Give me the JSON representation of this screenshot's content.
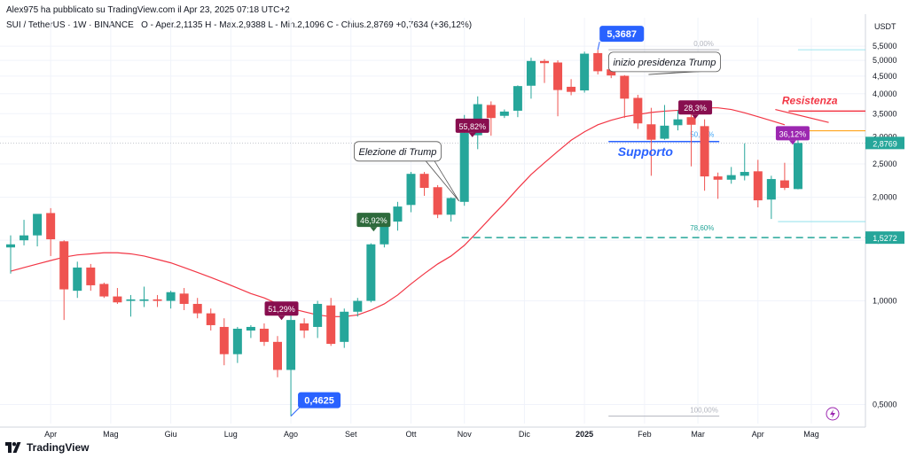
{
  "attribution": "Alex975 ha pubblicato su TradingView.com il Apr 23, 2025 07:18 UTC+2",
  "header": {
    "symbol": "SUI / TetherUS · 1W · BINANCE",
    "ohlc": "O - Aper.2,1135  H - Max.2,9388  L - Min.2,1096  C - Chius.2,8769  +0,7634 (+36,12%)"
  },
  "brand": "TradingView",
  "colors": {
    "up": "#26a69a",
    "down": "#ef5350",
    "ma": "#f23645",
    "accent": "#2962ff",
    "resistance_line": "#f23645",
    "support_line": "#2962ff"
  },
  "chart_data": {
    "type": "candlestick",
    "currency_label": "USDT",
    "y_scale": "log",
    "ylim": [
      0.44,
      6.05
    ],
    "y_ticks": [
      "5,5000",
      "5,0000",
      "4,5000",
      "4,0000",
      "3,5000",
      "3,0000",
      "2,5000",
      "2,0000",
      "1,5000",
      "1,0000",
      "0,5000"
    ],
    "y_tick_values": [
      5.5,
      5.0,
      4.5,
      4.0,
      3.5,
      3.0,
      2.5,
      2.0,
      1.5,
      1.0,
      0.5
    ],
    "x_ticks": [
      "Apr",
      "Mag",
      "Giu",
      "Lug",
      "Ago",
      "Set",
      "Ott",
      "Nov",
      "Dic",
      "2025",
      "Feb",
      "Mar",
      "Apr",
      "Mag"
    ],
    "x_tick_index": [
      3,
      7.5,
      12,
      16.5,
      21,
      25.5,
      30,
      34,
      38.5,
      43,
      47.5,
      51.5,
      56,
      60
    ],
    "candles": [
      {
        "o": 1.43,
        "h": 1.55,
        "l": 1.2,
        "c": 1.46
      },
      {
        "o": 1.5,
        "h": 1.72,
        "l": 1.45,
        "c": 1.55
      },
      {
        "o": 1.55,
        "h": 1.78,
        "l": 1.44,
        "c": 1.79
      },
      {
        "o": 1.8,
        "h": 1.86,
        "l": 1.35,
        "c": 1.51
      },
      {
        "o": 1.49,
        "h": 1.5,
        "l": 0.88,
        "c": 1.08
      },
      {
        "o": 1.07,
        "h": 1.3,
        "l": 1.02,
        "c": 1.25
      },
      {
        "o": 1.25,
        "h": 1.28,
        "l": 1.07,
        "c": 1.11
      },
      {
        "o": 1.12,
        "h": 1.13,
        "l": 1.02,
        "c": 1.03
      },
      {
        "o": 1.03,
        "h": 1.09,
        "l": 0.98,
        "c": 0.99
      },
      {
        "o": 1.0,
        "h": 1.04,
        "l": 0.9,
        "c": 1.01
      },
      {
        "o": 1.0,
        "h": 1.1,
        "l": 0.96,
        "c": 1.01
      },
      {
        "o": 1.01,
        "h": 1.04,
        "l": 0.96,
        "c": 1.0
      },
      {
        "o": 1.0,
        "h": 1.07,
        "l": 0.95,
        "c": 1.06
      },
      {
        "o": 1.05,
        "h": 1.09,
        "l": 0.94,
        "c": 0.98
      },
      {
        "o": 0.98,
        "h": 1.02,
        "l": 0.89,
        "c": 0.92
      },
      {
        "o": 0.92,
        "h": 0.95,
        "l": 0.82,
        "c": 0.85
      },
      {
        "o": 0.84,
        "h": 0.89,
        "l": 0.65,
        "c": 0.7
      },
      {
        "o": 0.7,
        "h": 0.84,
        "l": 0.66,
        "c": 0.83
      },
      {
        "o": 0.82,
        "h": 0.85,
        "l": 0.78,
        "c": 0.84
      },
      {
        "o": 0.83,
        "h": 0.86,
        "l": 0.74,
        "c": 0.76
      },
      {
        "o": 0.76,
        "h": 0.79,
        "l": 0.6,
        "c": 0.63
      },
      {
        "o": 0.63,
        "h": 0.94,
        "l": 0.4625,
        "c": 0.88
      },
      {
        "o": 0.86,
        "h": 0.89,
        "l": 0.78,
        "c": 0.82
      },
      {
        "o": 0.84,
        "h": 1.0,
        "l": 0.78,
        "c": 0.98
      },
      {
        "o": 0.97,
        "h": 1.02,
        "l": 0.74,
        "c": 0.75
      },
      {
        "o": 0.76,
        "h": 0.95,
        "l": 0.73,
        "c": 0.93
      },
      {
        "o": 0.93,
        "h": 1.02,
        "l": 0.9,
        "c": 1.0
      },
      {
        "o": 1.0,
        "h": 1.47,
        "l": 0.99,
        "c": 1.46
      },
      {
        "o": 1.46,
        "h": 1.79,
        "l": 1.43,
        "c": 1.67
      },
      {
        "o": 1.7,
        "h": 1.94,
        "l": 1.6,
        "c": 1.88
      },
      {
        "o": 1.9,
        "h": 2.37,
        "l": 1.81,
        "c": 2.34
      },
      {
        "o": 2.34,
        "h": 2.37,
        "l": 2.02,
        "c": 2.13
      },
      {
        "o": 2.14,
        "h": 2.17,
        "l": 1.74,
        "c": 1.78
      },
      {
        "o": 1.78,
        "h": 2.0,
        "l": 1.7,
        "c": 1.99
      },
      {
        "o": 1.94,
        "h": 3.47,
        "l": 1.89,
        "c": 3.08
      },
      {
        "o": 3.03,
        "h": 3.93,
        "l": 2.76,
        "c": 3.73
      },
      {
        "o": 3.71,
        "h": 3.8,
        "l": 3.02,
        "c": 3.4
      },
      {
        "o": 3.45,
        "h": 3.6,
        "l": 3.4,
        "c": 3.55
      },
      {
        "o": 3.57,
        "h": 4.23,
        "l": 3.42,
        "c": 4.21
      },
      {
        "o": 4.22,
        "h": 5.09,
        "l": 3.87,
        "c": 4.98
      },
      {
        "o": 4.98,
        "h": 5.04,
        "l": 4.3,
        "c": 4.91
      },
      {
        "o": 4.93,
        "h": 5.0,
        "l": 3.44,
        "c": 4.1
      },
      {
        "o": 4.19,
        "h": 4.41,
        "l": 3.96,
        "c": 4.05
      },
      {
        "o": 4.09,
        "h": 5.3,
        "l": 4.03,
        "c": 5.23
      },
      {
        "o": 5.25,
        "h": 5.3687,
        "l": 4.55,
        "c": 4.65
      },
      {
        "o": 4.71,
        "h": 5.27,
        "l": 4.44,
        "c": 4.52
      },
      {
        "o": 4.51,
        "h": 4.53,
        "l": 3.4,
        "c": 3.87
      },
      {
        "o": 3.89,
        "h": 3.97,
        "l": 3.16,
        "c": 3.28
      },
      {
        "o": 3.26,
        "h": 3.64,
        "l": 2.31,
        "c": 2.94
      },
      {
        "o": 2.96,
        "h": 3.71,
        "l": 2.94,
        "c": 3.23
      },
      {
        "o": 3.24,
        "h": 3.58,
        "l": 3.13,
        "c": 3.37
      },
      {
        "o": 3.42,
        "h": 3.55,
        "l": 2.46,
        "c": 3.25
      },
      {
        "o": 3.22,
        "h": 3.37,
        "l": 2.09,
        "c": 2.3
      },
      {
        "o": 2.3,
        "h": 2.36,
        "l": 1.98,
        "c": 2.25
      },
      {
        "o": 2.25,
        "h": 2.45,
        "l": 2.19,
        "c": 2.32
      },
      {
        "o": 2.31,
        "h": 2.87,
        "l": 2.24,
        "c": 2.37
      },
      {
        "o": 2.38,
        "h": 2.57,
        "l": 1.87,
        "c": 1.96
      },
      {
        "o": 1.97,
        "h": 2.31,
        "l": 1.73,
        "c": 2.26
      },
      {
        "o": 2.24,
        "h": 2.52,
        "l": 2.1,
        "c": 2.13
      },
      {
        "o": 2.1135,
        "h": 2.9388,
        "l": 2.1096,
        "c": 2.8769
      }
    ],
    "moving_average": [
      1.22,
      1.25,
      1.28,
      1.31,
      1.34,
      1.36,
      1.37,
      1.38,
      1.38,
      1.37,
      1.35,
      1.32,
      1.29,
      1.25,
      1.21,
      1.17,
      1.13,
      1.09,
      1.05,
      1.02,
      0.98,
      0.95,
      0.93,
      0.91,
      0.9,
      0.9,
      0.91,
      0.94,
      0.98,
      1.04,
      1.12,
      1.2,
      1.28,
      1.35,
      1.45,
      1.59,
      1.75,
      1.92,
      2.12,
      2.33,
      2.52,
      2.72,
      2.93,
      3.1,
      3.25,
      3.35,
      3.43,
      3.48,
      3.53,
      3.56,
      3.58,
      3.62,
      3.64,
      3.64,
      3.6,
      3.52,
      3.43,
      3.34,
      3.25
    ],
    "last_price": {
      "value": 2.8769,
      "label": "2,8769"
    },
    "level_1_5272": {
      "value": 1.5272,
      "label": "1,5272"
    },
    "fib": {
      "level_0": {
        "value": 5.3687,
        "label": "0,00%"
      },
      "level_50": {
        "value": 2.89,
        "label": "50,00%"
      },
      "level_78": {
        "value": 1.555,
        "label": "78,60%"
      },
      "level_100": {
        "value": 0.4625,
        "label": "100,00%"
      }
    },
    "price_labels": [
      {
        "label": "5,3687",
        "index": 44,
        "value": 5.3687
      },
      {
        "label": "0,4625",
        "index": 21,
        "value": 0.4625
      }
    ],
    "percent_badges": [
      {
        "label": "51,29%",
        "index": 20.3,
        "value": 0.95,
        "color": "#880e4f"
      },
      {
        "label": "46,92%",
        "index": 27.2,
        "value": 1.72,
        "color": "#2e6a3c"
      },
      {
        "label": "55,82%",
        "index": 34.6,
        "value": 3.23,
        "color": "#880e4f"
      },
      {
        "label": "28,3%",
        "index": 51.3,
        "value": 3.65,
        "color": "#880e4f"
      },
      {
        "label": "36,12%",
        "index": 58.6,
        "value": 3.07,
        "color": "#9c27b0"
      }
    ],
    "annotations": [
      {
        "text": "Elezione di Trump",
        "index": 29,
        "value": 2.72
      },
      {
        "text": "inizio presidenza Trump",
        "index": 49,
        "value": 4.95
      },
      {
        "text": "Supporto",
        "index": 45.5,
        "value": 2.72
      },
      {
        "text": "Resistenza",
        "index": 57.8,
        "value": 3.82
      }
    ],
    "support": {
      "value": 2.905
    },
    "resistance": {
      "value": 3.56
    }
  }
}
